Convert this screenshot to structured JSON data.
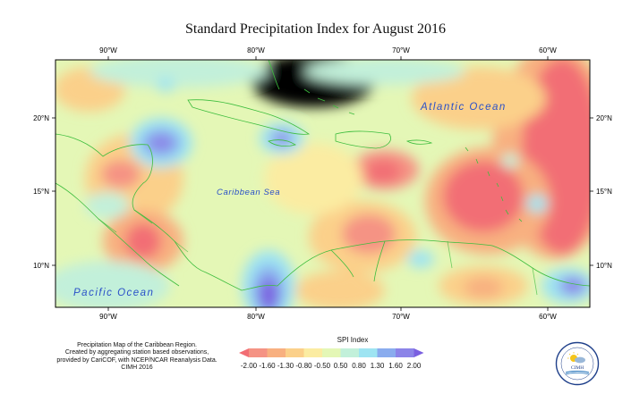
{
  "title": "Standard Precipitation Index for August 2016",
  "map": {
    "x_ticks": [
      "90°W",
      "80°W",
      "70°W",
      "60°W"
    ],
    "y_ticks": [
      "20°N",
      "15°N",
      "10°N"
    ],
    "ocean_labels": {
      "atlantic": "Atlantic Ocean",
      "caribbean": "Caribbean Sea",
      "pacific": "Pacific Ocean"
    }
  },
  "legend": {
    "title": "SPI Index",
    "ticks": [
      "-2.00",
      "-1.60",
      "-1.30",
      "-0.80",
      "-0.50",
      "0.50",
      "0.80",
      "1.30",
      "1.60",
      "2.00"
    ],
    "colors": [
      "#f26e74",
      "#f59384",
      "#f8b080",
      "#fbd08a",
      "#fbeca2",
      "#e4f7b6",
      "#c2f0da",
      "#9ee4f2",
      "#8aacee",
      "#8c84e8",
      "#7a5fe0"
    ]
  },
  "caption": {
    "line1": "Precipitation Map of the Caribbean Region.",
    "line2": "Created by aggregating station based observations,",
    "line3": "provided by CariCOF, with NCEP/NCAR Reanalysis Data.",
    "line4": "CIMH 2016"
  },
  "logo": {
    "text": "CIMH"
  }
}
